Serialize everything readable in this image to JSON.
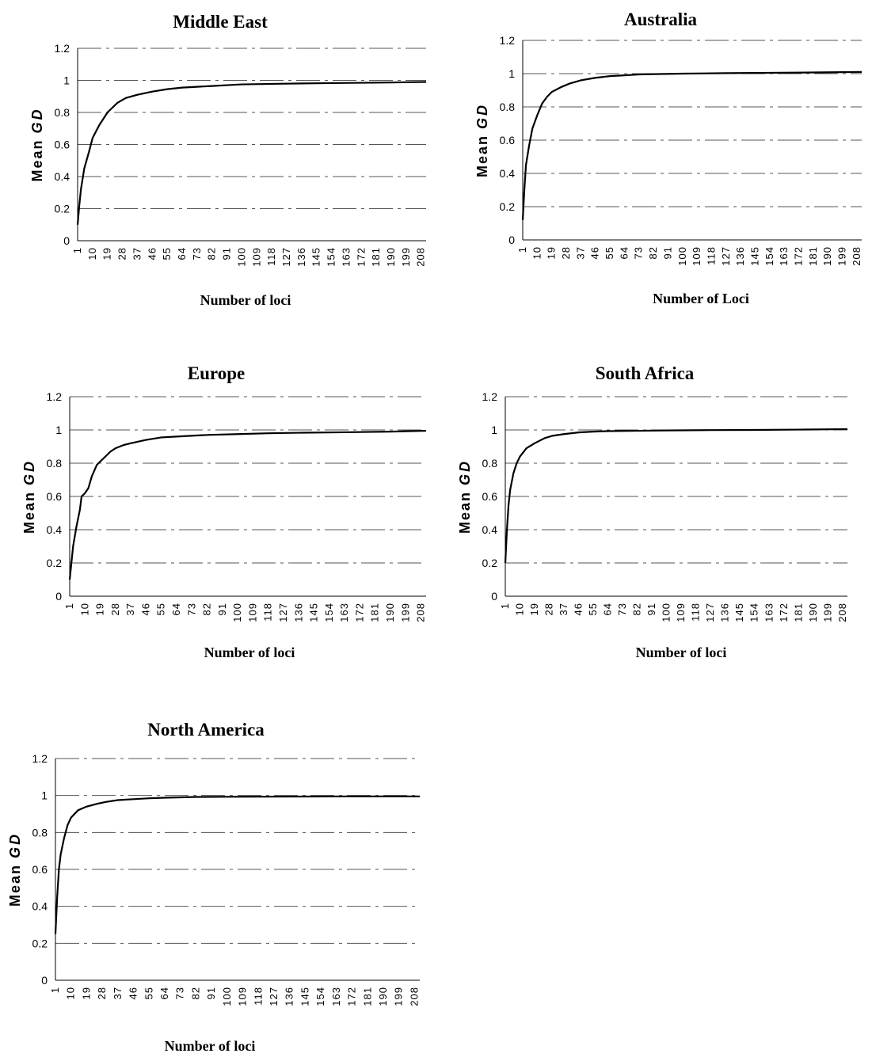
{
  "chart_data": [
    {
      "type": "line",
      "title": "Middle East",
      "xlabel": "Number of loci",
      "ylabel_prefix": "Mean ",
      "ylabel_italic": "GD",
      "ylim": [
        0,
        1.2
      ],
      "yticks": [
        "0",
        "0.2",
        "0.4",
        "0.6",
        "0.8",
        "1",
        "1.2"
      ],
      "xlim": [
        1,
        211
      ],
      "xticks": [
        "1",
        "10",
        "19",
        "28",
        "37",
        "46",
        "55",
        "64",
        "73",
        "82",
        "91",
        "100",
        "109",
        "118",
        "127",
        "136",
        "145",
        "154",
        "163",
        "172",
        "181",
        "190",
        "199",
        "208"
      ],
      "grid": true,
      "series": [
        {
          "x": [
            1,
            2,
            3,
            5,
            8,
            10,
            14,
            19,
            25,
            30,
            37,
            46,
            55,
            64,
            73,
            82,
            91,
            100,
            118,
            136,
            154,
            172,
            190,
            211
          ],
          "y": [
            0.1,
            0.22,
            0.32,
            0.45,
            0.56,
            0.64,
            0.72,
            0.8,
            0.86,
            0.89,
            0.91,
            0.93,
            0.945,
            0.955,
            0.96,
            0.965,
            0.97,
            0.975,
            0.978,
            0.981,
            0.983,
            0.985,
            0.987,
            0.99
          ]
        }
      ]
    },
    {
      "type": "line",
      "title": "Australia",
      "xlabel": "Number of Loci",
      "ylabel_prefix": "Mean ",
      "ylabel_italic": "GD",
      "ylim": [
        0,
        1.2
      ],
      "yticks": [
        "0",
        "0.2",
        "0.4",
        "0.6",
        "0.8",
        "1",
        "1.2"
      ],
      "xlim": [
        1,
        211
      ],
      "xticks": [
        "1",
        "10",
        "19",
        "28",
        "37",
        "46",
        "55",
        "64",
        "73",
        "82",
        "91",
        "100",
        "109",
        "118",
        "127",
        "136",
        "145",
        "154",
        "163",
        "172",
        "181",
        "190",
        "199",
        "208"
      ],
      "grid": true,
      "series": [
        {
          "x": [
            1,
            2,
            3,
            5,
            7,
            10,
            13,
            16,
            19,
            25,
            30,
            37,
            46,
            55,
            64,
            73,
            82,
            100,
            127,
            154,
            181,
            211
          ],
          "y": [
            0.12,
            0.3,
            0.45,
            0.57,
            0.67,
            0.75,
            0.82,
            0.86,
            0.89,
            0.92,
            0.94,
            0.96,
            0.975,
            0.985,
            0.99,
            0.995,
            0.997,
            1.0,
            1.003,
            1.005,
            1.007,
            1.01
          ]
        }
      ]
    },
    {
      "type": "line",
      "title": "Europe",
      "xlabel": "Number of loci",
      "ylabel_prefix": "Mean ",
      "ylabel_italic": "GD",
      "ylim": [
        0,
        1.2
      ],
      "yticks": [
        "0",
        "0.2",
        "0.4",
        "0.6",
        "0.8",
        "1",
        "1.2"
      ],
      "xlim": [
        1,
        211
      ],
      "xticks": [
        "1",
        "10",
        "19",
        "28",
        "37",
        "46",
        "55",
        "64",
        "73",
        "82",
        "91",
        "100",
        "109",
        "118",
        "127",
        "136",
        "145",
        "154",
        "163",
        "172",
        "181",
        "190",
        "199",
        "208"
      ],
      "grid": true,
      "series": [
        {
          "x": [
            1,
            2,
            3,
            5,
            7,
            8,
            10,
            12,
            14,
            17,
            19,
            22,
            25,
            28,
            33,
            37,
            46,
            55,
            64,
            82,
            100,
            118,
            136,
            163,
            190,
            211
          ],
          "y": [
            0.1,
            0.2,
            0.3,
            0.42,
            0.52,
            0.6,
            0.62,
            0.65,
            0.72,
            0.79,
            0.81,
            0.84,
            0.87,
            0.89,
            0.91,
            0.92,
            0.94,
            0.955,
            0.96,
            0.97,
            0.975,
            0.98,
            0.983,
            0.986,
            0.99,
            0.995
          ]
        }
      ]
    },
    {
      "type": "line",
      "title": "South Africa",
      "xlabel": "Number of loci",
      "ylabel_prefix": "Mean ",
      "ylabel_italic": "GD",
      "ylim": [
        0,
        1.2
      ],
      "yticks": [
        "0",
        "0.2",
        "0.4",
        "0.6",
        "0.8",
        "1",
        "1.2"
      ],
      "xlim": [
        1,
        211
      ],
      "xticks": [
        "1",
        "10",
        "19",
        "28",
        "37",
        "46",
        "55",
        "64",
        "73",
        "82",
        "91",
        "100",
        "109",
        "118",
        "127",
        "136",
        "145",
        "154",
        "163",
        "172",
        "181",
        "190",
        "199",
        "208"
      ],
      "grid": true,
      "series": [
        {
          "x": [
            1,
            2,
            3,
            4,
            6,
            8,
            10,
            14,
            19,
            25,
            30,
            37,
            46,
            55,
            64,
            82,
            100,
            127,
            154,
            181,
            211
          ],
          "y": [
            0.2,
            0.4,
            0.55,
            0.64,
            0.74,
            0.8,
            0.84,
            0.89,
            0.92,
            0.95,
            0.965,
            0.975,
            0.985,
            0.99,
            0.993,
            0.995,
            0.997,
            0.999,
            1.0,
            1.002,
            1.005
          ]
        }
      ]
    },
    {
      "type": "line",
      "title": "North America",
      "xlabel": "Number of loci",
      "ylabel_prefix": "Mean ",
      "ylabel_italic": "GD",
      "ylim": [
        0,
        1.2
      ],
      "yticks": [
        "0",
        "0.2",
        "0.4",
        "0.6",
        "0.8",
        "1",
        "1.2"
      ],
      "xlim": [
        1,
        211
      ],
      "xticks": [
        "1",
        "10",
        "19",
        "28",
        "37",
        "46",
        "55",
        "64",
        "73",
        "82",
        "91",
        "100",
        "109",
        "118",
        "127",
        "136",
        "145",
        "154",
        "163",
        "172",
        "181",
        "190",
        "199",
        "208"
      ],
      "grid": true,
      "series": [
        {
          "x": [
            1,
            2,
            3,
            4,
            6,
            8,
            10,
            14,
            19,
            25,
            30,
            37,
            46,
            55,
            64,
            73,
            82,
            100,
            136,
            172,
            211
          ],
          "y": [
            0.25,
            0.45,
            0.6,
            0.68,
            0.77,
            0.84,
            0.88,
            0.92,
            0.94,
            0.955,
            0.965,
            0.975,
            0.98,
            0.985,
            0.988,
            0.99,
            0.992,
            0.993,
            0.994,
            0.995,
            0.995
          ]
        }
      ]
    }
  ]
}
